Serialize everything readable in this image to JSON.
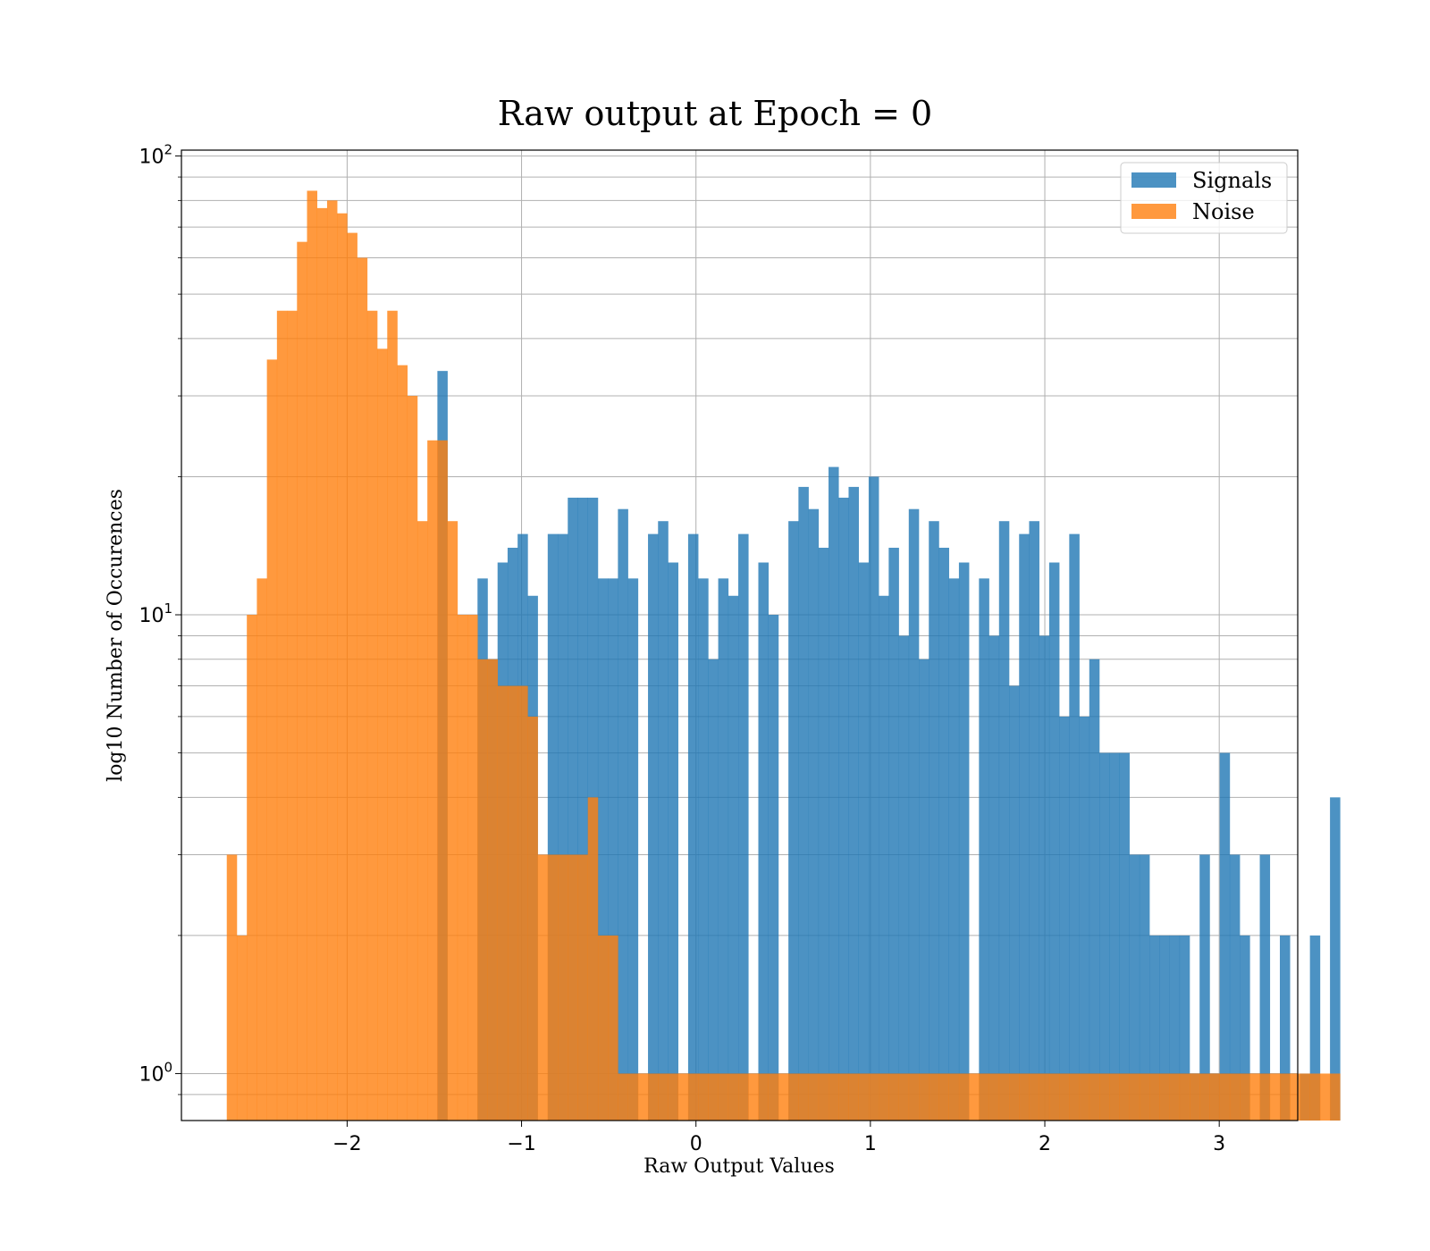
{
  "chart_data": {
    "type": "histogram",
    "title": "Raw output at Epoch = 0",
    "xlabel": "Raw Output Values",
    "ylabel": "log10 Number of Occurences",
    "xscale": "linear",
    "yscale": "log",
    "xlim": [
      -2.95,
      3.45
    ],
    "ylim": [
      0.79,
      103
    ],
    "grid": true,
    "legend_position": "top-right",
    "x_ticks": [
      {
        "value": -2,
        "label": "−2"
      },
      {
        "value": -1,
        "label": "−1"
      },
      {
        "value": 0,
        "label": "0"
      },
      {
        "value": 1,
        "label": "1"
      },
      {
        "value": 2,
        "label": "2"
      },
      {
        "value": 3,
        "label": "3"
      }
    ],
    "y_major_ticks": [
      {
        "value": 1,
        "base": "10",
        "exp": "0"
      },
      {
        "value": 10,
        "base": "10",
        "exp": "1"
      },
      {
        "value": 100,
        "base": "10",
        "exp": "2"
      }
    ],
    "y_minor_ticks": [
      0.9,
      2,
      3,
      4,
      5,
      6,
      7,
      8,
      9,
      20,
      30,
      40,
      50,
      60,
      70,
      80,
      90
    ],
    "series": [
      {
        "name": "Signals",
        "color": "#1f77b4",
        "opacity": 0.8,
        "bin_start": -2.69,
        "bin_width": 0.0575,
        "counts": [
          0,
          0,
          0,
          0,
          0,
          0,
          0,
          0,
          0,
          0,
          0,
          0,
          0,
          0,
          0,
          0,
          0,
          0,
          0,
          0,
          0,
          34,
          0,
          0,
          0,
          12,
          8,
          13,
          14,
          15,
          11,
          0,
          15,
          15,
          18,
          18,
          18,
          12,
          12,
          17,
          12,
          0,
          15,
          16,
          13,
          0,
          15,
          12,
          8,
          12,
          11,
          15,
          0,
          13,
          10,
          0,
          16,
          19,
          17,
          14,
          21,
          18,
          19,
          13,
          20,
          11,
          14,
          9,
          17,
          8,
          16,
          14,
          12,
          13,
          0,
          12,
          9,
          16,
          7,
          15,
          16,
          9,
          13,
          6,
          15,
          6,
          8,
          5,
          5,
          5,
          3,
          3,
          2,
          2,
          2,
          2,
          1,
          3,
          1,
          5,
          3,
          2,
          0,
          3,
          0,
          2,
          0,
          1,
          2,
          0,
          4
        ]
      },
      {
        "name": "Noise",
        "color": "#ff7f0e",
        "opacity": 0.8,
        "bin_start": -2.69,
        "bin_width": 0.0575,
        "counts": [
          3,
          2,
          10,
          12,
          36,
          46,
          46,
          65,
          84,
          77,
          80,
          75,
          68,
          60,
          46,
          38,
          46,
          35,
          30,
          16,
          24,
          24,
          16,
          10,
          10,
          8,
          8,
          7,
          7,
          7,
          6,
          3,
          3,
          3,
          3,
          3,
          4,
          2,
          2,
          1,
          1,
          1,
          1,
          1,
          1,
          1,
          1,
          1,
          1,
          1,
          1,
          1,
          1,
          1,
          1,
          1,
          1,
          1,
          1,
          1,
          1,
          1,
          1,
          1,
          1,
          1,
          1,
          1,
          1,
          1,
          1,
          1,
          1,
          1,
          1,
          1,
          1,
          1,
          1,
          1,
          1,
          1,
          1,
          1,
          1,
          1,
          1,
          1,
          1,
          1,
          1,
          1,
          1,
          1,
          1,
          1,
          1,
          1,
          1,
          1,
          1,
          1,
          1,
          1,
          1,
          1,
          1,
          1,
          1,
          1,
          1
        ]
      }
    ]
  }
}
